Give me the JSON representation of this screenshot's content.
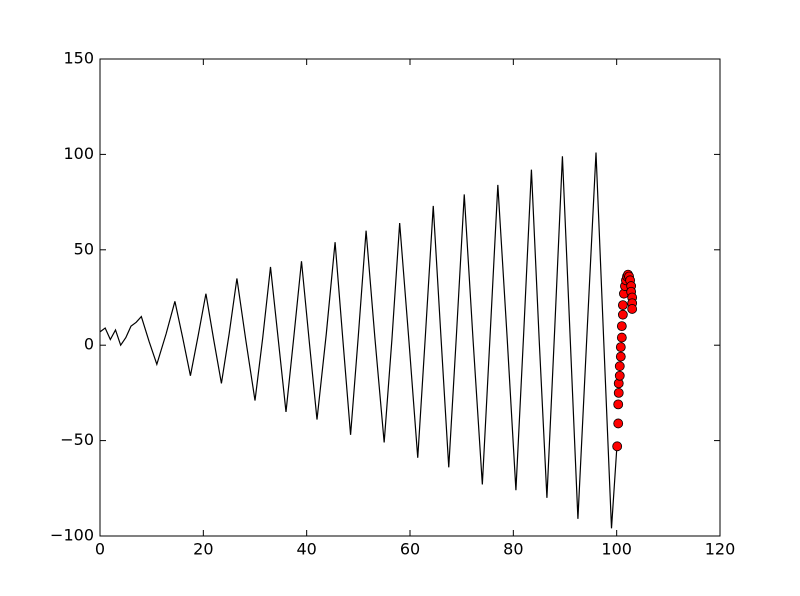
{
  "chart_data": {
    "type": "line",
    "xlim": [
      0,
      120
    ],
    "xticks": [
      0,
      20,
      40,
      60,
      80,
      100,
      120
    ],
    "ylim": [
      -100,
      150
    ],
    "yticks": [
      {
        "value": -100,
        "label": "−100"
      },
      {
        "value": -50,
        "label": "−50"
      },
      0,
      50,
      100,
      150
    ],
    "series": [
      {
        "color": "#000000",
        "x": [
          0,
          1,
          2,
          3,
          4,
          5,
          6,
          7,
          8,
          9.5,
          11,
          12.8,
          14.5,
          16,
          17.5,
          19,
          20.5,
          22,
          23.5,
          25,
          26.5,
          28.2,
          30,
          31.5,
          33,
          34.5,
          36,
          37.5,
          39,
          40.5,
          42,
          43.8,
          45.5,
          47,
          48.5,
          50,
          51.5,
          53.2,
          55,
          56.5,
          58,
          59.8,
          61.5,
          63,
          64.5,
          66,
          67.5,
          69,
          70.5,
          72.2,
          74,
          75.5,
          77,
          78.8,
          80.5,
          82,
          83.5,
          85,
          86.5,
          88,
          89.5,
          91,
          92.5,
          94.2,
          96,
          97.5,
          99,
          100
        ],
        "values": [
          7,
          9,
          3,
          8,
          0,
          4,
          10,
          12,
          15,
          2,
          -10,
          6,
          23,
          4,
          -16,
          5,
          27,
          3,
          -20,
          6,
          35,
          3,
          -29,
          4,
          41,
          3,
          -35,
          4,
          44,
          2,
          -39,
          6,
          54,
          3,
          -47,
          5,
          60,
          4,
          -51,
          3,
          64,
          2,
          -59,
          6,
          73,
          4,
          -64,
          6,
          79,
          3,
          -73,
          5,
          84,
          4,
          -76,
          6,
          92,
          3,
          -80,
          8,
          99,
          4,
          -91,
          3,
          101,
          2,
          -96,
          -55
        ]
      },
      {
        "color": "#ff0000",
        "marker": "o",
        "x": [
          100.1,
          100.3,
          100.3,
          100.4,
          100.4,
          100.6,
          100.6,
          100.8,
          100.8,
          101.0,
          101.0,
          101.2,
          101.2,
          101.4,
          101.6,
          101.8,
          102.0,
          102.2,
          102.4,
          102.6,
          102.8,
          102.8,
          103.0,
          103.0,
          103.0
        ],
        "values": [
          -53,
          -41,
          -31,
          -25,
          -20,
          -16,
          -11,
          -6,
          -1,
          4,
          10,
          16,
          21,
          27,
          31,
          34,
          36,
          37,
          36,
          34,
          31,
          28,
          25,
          22,
          19
        ]
      }
    ]
  }
}
